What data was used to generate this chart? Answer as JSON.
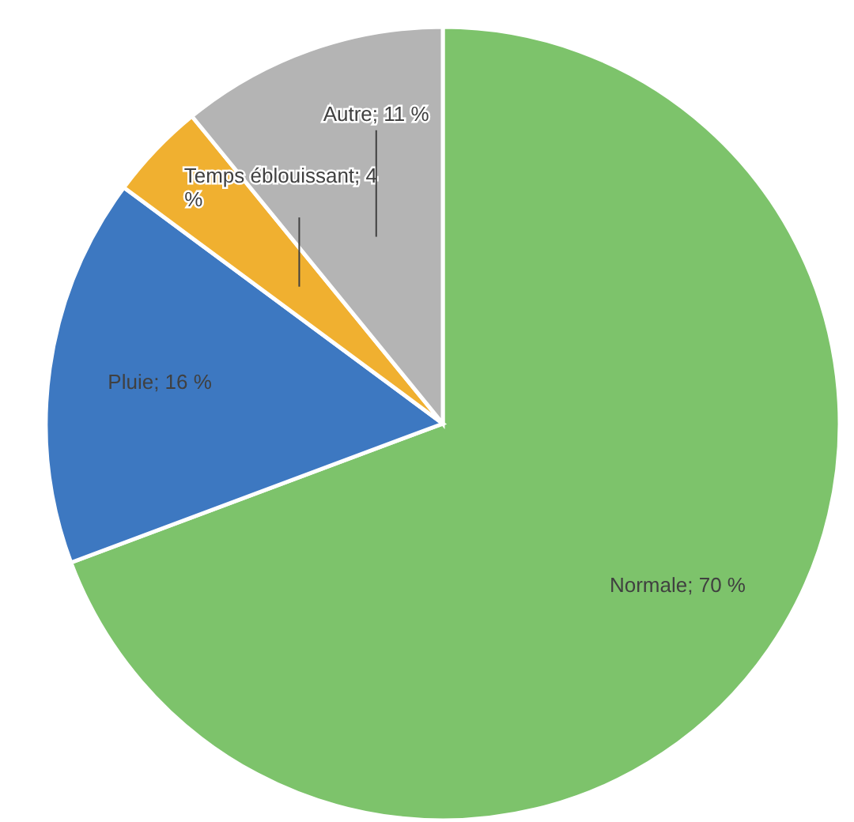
{
  "chart_data": {
    "type": "pie",
    "categories": [
      "Normale",
      "Pluie",
      "Temps éblouissant",
      "Autre"
    ],
    "values": [
      70,
      16,
      4,
      11
    ],
    "colors": [
      "#7dc36b",
      "#3d78c1",
      "#f0b030",
      "#b4b4b4"
    ],
    "value_labels": [
      "70 %",
      "16 %",
      "4 %",
      "11 %"
    ]
  }
}
